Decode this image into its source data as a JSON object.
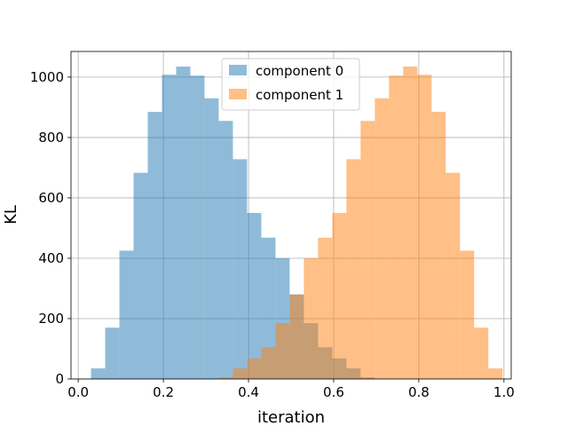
{
  "chart_data": {
    "type": "bar",
    "subtype": "histogram",
    "title": "",
    "xlabel": "iteration",
    "ylabel": "KL",
    "xlim": [
      -0.017,
      1.017
    ],
    "ylim": [
      0,
      1085
    ],
    "xticks": [
      0.0,
      0.2,
      0.4,
      0.6,
      0.8,
      1.0
    ],
    "xtick_labels": [
      "0.0",
      "0.2",
      "0.4",
      "0.6",
      "0.8",
      "1.0"
    ],
    "yticks": [
      0,
      200,
      400,
      600,
      800,
      1000
    ],
    "ytick_labels": [
      "0",
      "200",
      "400",
      "600",
      "800",
      "1000"
    ],
    "grid": true,
    "legend_position": "top-center",
    "bin_width": 0.0333,
    "series": [
      {
        "name": "component 0",
        "color": "#1f77b4",
        "alpha": 0.5,
        "bin_starts": [
          0.03,
          0.0633,
          0.0967,
          0.13,
          0.1633,
          0.1967,
          0.23,
          0.2633,
          0.2967,
          0.33,
          0.3633,
          0.3967,
          0.43,
          0.4633,
          0.4967,
          0.53,
          0.5633,
          0.5967,
          0.63,
          0.6633
        ],
        "values": [
          35,
          170,
          425,
          683,
          885,
          1008,
          1035,
          1005,
          930,
          855,
          728,
          550,
          468,
          400,
          280,
          185,
          105,
          68,
          35,
          5
        ]
      },
      {
        "name": "component 1",
        "color": "#ff7f0e",
        "alpha": 0.5,
        "bin_starts": [
          0.33,
          0.3633,
          0.3967,
          0.43,
          0.4633,
          0.4967,
          0.53,
          0.5633,
          0.5967,
          0.63,
          0.6633,
          0.6967,
          0.73,
          0.7633,
          0.7967,
          0.83,
          0.8633,
          0.8967,
          0.93,
          0.9633
        ],
        "values": [
          5,
          35,
          68,
          105,
          185,
          280,
          400,
          468,
          550,
          728,
          855,
          930,
          1005,
          1035,
          1008,
          885,
          683,
          425,
          170,
          35
        ]
      }
    ]
  }
}
